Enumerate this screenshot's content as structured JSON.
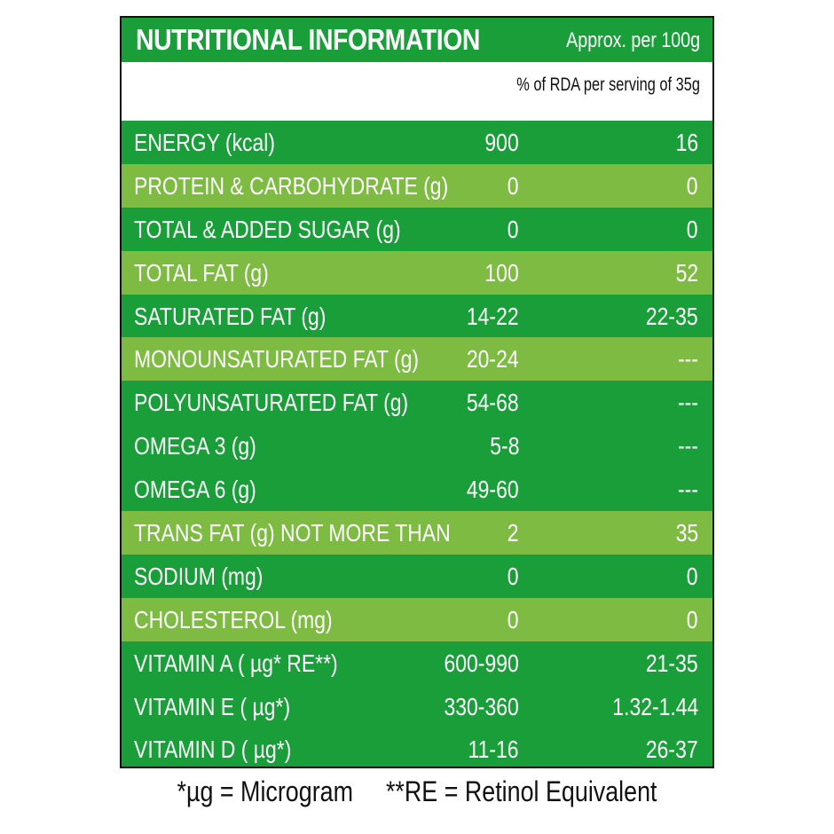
{
  "title": "NUTRITIONAL INFORMATION",
  "per_100g": "Approx. per 100g",
  "rda_note": "% of RDA per serving of 35g",
  "colors": {
    "dark_green": "#1a9e3a",
    "light_green": "#7dbb42",
    "text": "#ffffff",
    "border": "#111111"
  },
  "rows": [
    {
      "label": "ENERGY (kcal)",
      "per100": "900",
      "rda": "16",
      "shade": "dark"
    },
    {
      "label": "PROTEIN & CARBOHYDRATE (g)",
      "per100": "0",
      "rda": "0",
      "shade": "light"
    },
    {
      "label": "TOTAL & ADDED SUGAR (g)",
      "per100": "0",
      "rda": "0",
      "shade": "dark"
    },
    {
      "label": "TOTAL FAT (g)",
      "per100": "100",
      "rda": "52",
      "shade": "light"
    },
    {
      "label": "SATURATED FAT (g)",
      "per100": "14-22",
      "rda": "22-35",
      "shade": "dark"
    },
    {
      "label": "MONOUNSATURATED FAT  (g)",
      "per100": "20-24",
      "rda": "---",
      "shade": "light"
    },
    {
      "label": "POLYUNSATURATED FAT (g)",
      "per100": "54-68",
      "rda": "---",
      "shade": "dark"
    },
    {
      "label": "OMEGA 3 (g)",
      "per100": "5-8",
      "rda": "---",
      "shade": "dark"
    },
    {
      "label": "OMEGA  6 (g)",
      "per100": "49-60",
      "rda": "---",
      "shade": "dark"
    },
    {
      "label": "TRANS FAT (g) NOT MORE THAN",
      "per100": "2",
      "rda": "35",
      "shade": "light"
    },
    {
      "label": "SODIUM (mg)",
      "per100": "0",
      "rda": "0",
      "shade": "dark"
    },
    {
      "label": "CHOLESTEROL (mg)",
      "per100": "0",
      "rda": "0",
      "shade": "light"
    },
    {
      "label": "VITAMIN A ( µg* RE**)",
      "per100": "600-990",
      "rda": "21-35",
      "shade": "dark"
    },
    {
      "label": "VITAMIN E ( µg*)",
      "per100": "330-360",
      "rda": "1.32-1.44",
      "shade": "dark"
    },
    {
      "label": "VITAMIN D ( µg*)",
      "per100": "11-16",
      "rda": "26-37",
      "shade": "dark"
    }
  ],
  "footnotes": {
    "microgram": "*µg = Microgram",
    "retinol": "**RE = Retinol Equivalent"
  }
}
